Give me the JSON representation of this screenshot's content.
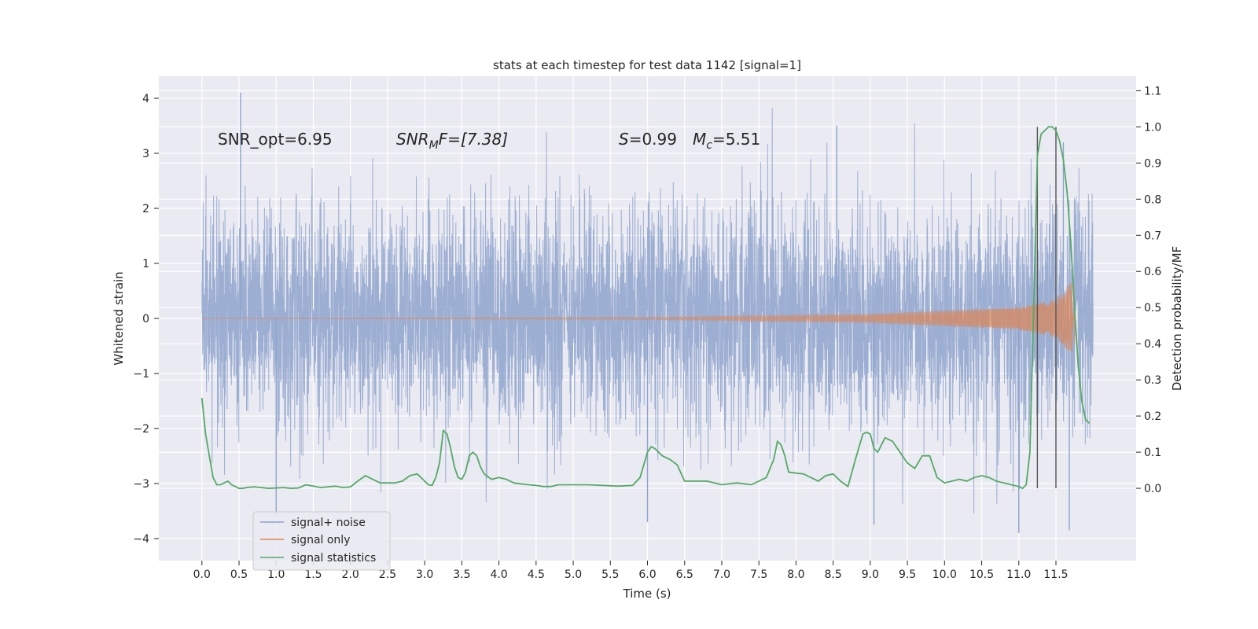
{
  "chart_data": {
    "type": "line",
    "title": "stats at each timestep for test data 1142 [signal=1]",
    "xlabel": "Time (s)",
    "ylabel": "Whitened strain",
    "ylabel_right": "Detection probability/MF",
    "xlim": [
      -0.58,
      12.58
    ],
    "ylim": [
      -4.4,
      4.4
    ],
    "ylim_right": [
      -0.2,
      1.14
    ],
    "x_ticks": [
      "0.0",
      "0.5",
      "1.0",
      "1.5",
      "2.0",
      "2.5",
      "3.0",
      "3.5",
      "4.0",
      "4.5",
      "5.0",
      "5.5",
      "6.0",
      "6.5",
      "7.0",
      "7.5",
      "8.0",
      "8.5",
      "9.0",
      "9.5",
      "10.0",
      "10.5",
      "11.0",
      "11.5"
    ],
    "y_ticks": [
      "4",
      "3",
      "2",
      "1",
      "0",
      "−1",
      "−2",
      "−3",
      "−4"
    ],
    "y_right_ticks": [
      "1.1",
      "1.0",
      "0.9",
      "0.8",
      "0.7",
      "0.6",
      "0.5",
      "0.4",
      "0.3",
      "0.2",
      "0.1",
      "0.0"
    ],
    "grid": true,
    "legend_position": "lower-left",
    "colors": {
      "noise": "#8ea3cc",
      "signal": "#dd8452",
      "statistics": "#55a868",
      "markers": "#555555",
      "background": "#eaeaf2"
    },
    "annotations": {
      "snr_opt": "SNR_opt=6.95",
      "snr_mf_base": "SNR",
      "snr_mf_sub": "M",
      "snr_mf_rest": "F=[7.38]",
      "s_sym": "S",
      "s_val": "=0.99",
      "mc_base": "M",
      "mc_sub": "c",
      "mc_val": "=5.51"
    },
    "series": [
      {
        "name": "signal+ noise",
        "axis": "left",
        "x_range": [
          0.0,
          12.0
        ],
        "typical_range": [
          -2.0,
          2.0
        ],
        "extreme_range": [
          -3.9,
          4.1
        ],
        "peaks": [
          {
            "x": 0.52,
            "y": 4.1
          },
          {
            "x": 1.0,
            "y": -3.6
          },
          {
            "x": 6.0,
            "y": -3.7
          },
          {
            "x": 8.55,
            "y": 3.5
          },
          {
            "x": 9.05,
            "y": -3.75
          },
          {
            "x": 11.0,
            "y": -3.9
          },
          {
            "x": 11.68,
            "y": -3.85
          },
          {
            "x": 11.6,
            "y": 3.2
          }
        ]
      },
      {
        "name": "signal only",
        "axis": "left",
        "type": "chirp",
        "x_range": [
          0.0,
          11.75
        ],
        "envelope": [
          {
            "x": 0.0,
            "y": 0.0
          },
          {
            "x": 6.0,
            "y": 0.02
          },
          {
            "x": 9.0,
            "y": 0.08
          },
          {
            "x": 11.0,
            "y": 0.2
          },
          {
            "x": 11.5,
            "y": 0.35
          },
          {
            "x": 11.7,
            "y": 0.65
          }
        ]
      },
      {
        "name": "signal statistics",
        "axis": "right",
        "x": [
          0.0,
          0.05,
          0.1,
          0.15,
          0.2,
          0.25,
          0.3,
          0.35,
          0.4,
          0.45,
          0.5,
          0.55,
          0.6,
          0.7,
          0.8,
          0.9,
          1.0,
          1.1,
          1.2,
          1.3,
          1.4,
          1.5,
          1.6,
          1.7,
          1.8,
          1.9,
          2.0,
          2.1,
          2.2,
          2.3,
          2.4,
          2.5,
          2.6,
          2.7,
          2.8,
          2.9,
          3.0,
          3.05,
          3.1,
          3.15,
          3.2,
          3.25,
          3.3,
          3.35,
          3.4,
          3.45,
          3.5,
          3.55,
          3.6,
          3.65,
          3.7,
          3.75,
          3.8,
          3.9,
          4.0,
          4.1,
          4.2,
          4.3,
          4.4,
          4.5,
          4.6,
          4.7,
          4.8,
          4.9,
          5.0,
          5.2,
          5.4,
          5.6,
          5.8,
          5.9,
          6.0,
          6.05,
          6.1,
          6.2,
          6.3,
          6.4,
          6.5,
          6.6,
          6.8,
          7.0,
          7.2,
          7.4,
          7.6,
          7.7,
          7.75,
          7.8,
          7.85,
          7.9,
          8.0,
          8.1,
          8.2,
          8.3,
          8.4,
          8.5,
          8.6,
          8.7,
          8.8,
          8.9,
          8.95,
          9.0,
          9.05,
          9.1,
          9.2,
          9.3,
          9.4,
          9.5,
          9.6,
          9.7,
          9.8,
          9.9,
          10.0,
          10.1,
          10.2,
          10.3,
          10.4,
          10.5,
          10.6,
          10.7,
          10.8,
          10.9,
          11.0,
          11.05,
          11.1,
          11.15,
          11.2,
          11.25,
          11.3,
          11.35,
          11.4,
          11.45,
          11.5,
          11.55,
          11.6,
          11.65,
          11.7,
          11.75,
          11.8,
          11.85,
          11.9,
          11.95
        ],
        "y": [
          0.25,
          0.15,
          0.09,
          0.03,
          0.01,
          0.01,
          0.015,
          0.02,
          0.01,
          0.005,
          0.0,
          0.0,
          0.002,
          0.004,
          0.002,
          0.0,
          0.001,
          0.002,
          0.0,
          0.001,
          0.01,
          0.006,
          0.002,
          0.004,
          0.006,
          0.002,
          0.004,
          0.02,
          0.035,
          0.025,
          0.015,
          0.015,
          0.015,
          0.02,
          0.035,
          0.04,
          0.02,
          0.01,
          0.008,
          0.03,
          0.07,
          0.16,
          0.15,
          0.11,
          0.06,
          0.03,
          0.025,
          0.045,
          0.09,
          0.1,
          0.09,
          0.06,
          0.04,
          0.025,
          0.03,
          0.025,
          0.015,
          0.012,
          0.01,
          0.008,
          0.005,
          0.005,
          0.01,
          0.01,
          0.01,
          0.01,
          0.008,
          0.006,
          0.008,
          0.03,
          0.1,
          0.115,
          0.11,
          0.09,
          0.08,
          0.065,
          0.02,
          0.02,
          0.02,
          0.01,
          0.015,
          0.01,
          0.03,
          0.08,
          0.13,
          0.12,
          0.09,
          0.045,
          0.042,
          0.04,
          0.03,
          0.02,
          0.035,
          0.04,
          0.02,
          0.005,
          0.08,
          0.15,
          0.155,
          0.15,
          0.11,
          0.1,
          0.14,
          0.13,
          0.1,
          0.07,
          0.055,
          0.09,
          0.09,
          0.03,
          0.015,
          0.02,
          0.025,
          0.02,
          0.03,
          0.035,
          0.03,
          0.02,
          0.015,
          0.01,
          0.005,
          0.0,
          0.01,
          0.1,
          0.5,
          0.92,
          0.98,
          0.99,
          1.0,
          1.0,
          0.99,
          0.96,
          0.91,
          0.82,
          0.68,
          0.5,
          0.34,
          0.24,
          0.19,
          0.18
        ]
      }
    ],
    "vertical_markers": [
      11.25,
      11.5
    ]
  }
}
